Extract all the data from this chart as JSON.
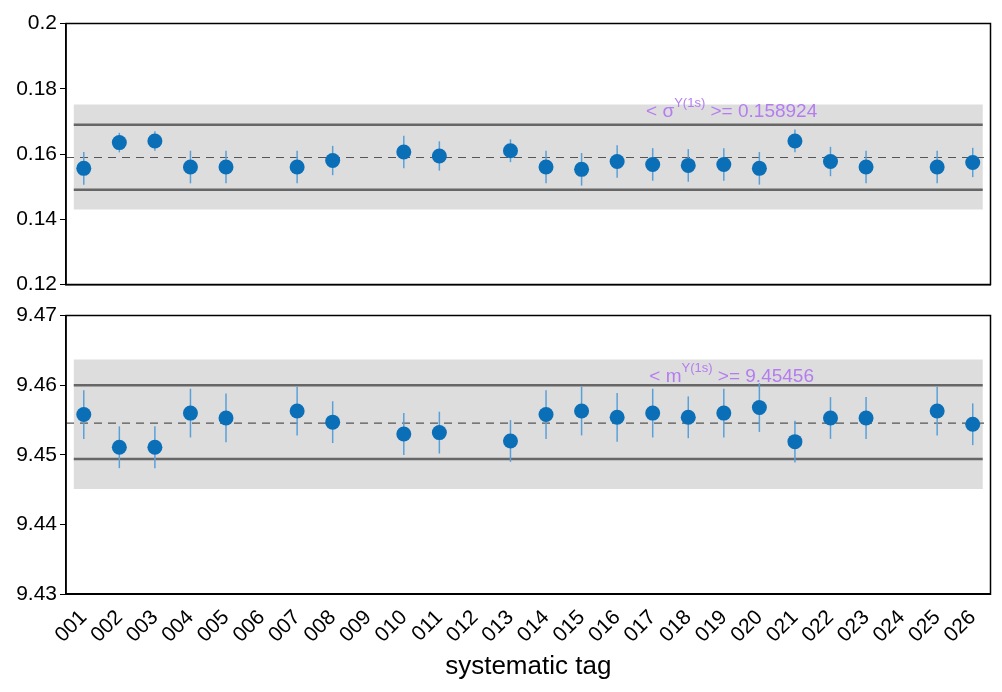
{
  "chart_data": [
    {
      "type": "scatter",
      "categories": [
        "001",
        "002",
        "003",
        "004",
        "005",
        "006",
        "007",
        "008",
        "009",
        "010",
        "011",
        "012",
        "013",
        "014",
        "015",
        "016",
        "017",
        "018",
        "019",
        "020",
        "021",
        "022",
        "023",
        "024",
        "025",
        "026"
      ],
      "series": [
        {
          "color": "#0b6fb8",
          "values": [
            0.1556,
            0.1635,
            0.164,
            0.156,
            0.156,
            null,
            0.156,
            0.158,
            null,
            0.1606,
            0.1594,
            null,
            0.161,
            0.156,
            0.1553,
            0.1577,
            0.1568,
            0.1565,
            0.1568,
            0.1556,
            0.164,
            0.1577,
            0.156,
            null,
            0.156,
            0.1574
          ],
          "errors": [
            0.005,
            0.003,
            0.003,
            0.005,
            0.005,
            null,
            0.005,
            0.0045,
            null,
            0.005,
            0.0045,
            null,
            0.0035,
            0.005,
            0.005,
            0.005,
            0.005,
            0.005,
            0.005,
            0.005,
            0.0035,
            0.0045,
            0.005,
            null,
            0.005,
            0.0045
          ]
        }
      ],
      "ylim": [
        0.12,
        0.2
      ],
      "yticks": [
        0.12,
        0.14,
        0.16,
        0.18,
        0.2
      ],
      "tick_labels": "y",
      "marker": "circle",
      "grid": false,
      "legend": false,
      "ref_lines": [
        {
          "axis": "y",
          "value": 0.158924,
          "color": "#555555",
          "line_style": "dashed"
        },
        {
          "axis": "y",
          "value": 0.169,
          "color": "#666666",
          "line_style": "solid"
        },
        {
          "axis": "y",
          "value": 0.149,
          "color": "#666666",
          "line_style": "solid"
        }
      ],
      "bands": [
        {
          "axis": "y",
          "from": 0.143,
          "to": 0.1752,
          "color": "#dddddd"
        }
      ],
      "annotations": [
        "< σ$^{Υ(1s)}$ >= 0.158924"
      ]
    },
    {
      "type": "scatter",
      "categories": [
        "001",
        "002",
        "003",
        "004",
        "005",
        "006",
        "007",
        "008",
        "009",
        "010",
        "011",
        "012",
        "013",
        "014",
        "015",
        "016",
        "017",
        "018",
        "019",
        "020",
        "021",
        "022",
        "023",
        "024",
        "025",
        "026"
      ],
      "series": [
        {
          "color": "#0b6fb8",
          "values": [
            9.4558,
            9.4511,
            9.4511,
            9.456,
            9.4553,
            null,
            9.4563,
            9.4547,
            null,
            9.453,
            9.4532,
            null,
            9.452,
            9.4558,
            9.4563,
            9.4554,
            9.456,
            9.4554,
            9.456,
            9.4568,
            9.4519,
            9.4553,
            9.4553,
            null,
            9.4563,
            9.4544
          ],
          "errors": [
            0.0035,
            0.003,
            0.003,
            0.0035,
            0.0035,
            null,
            0.0035,
            0.003,
            null,
            0.003,
            0.003,
            null,
            0.003,
            0.0035,
            0.0035,
            0.0035,
            0.0035,
            0.003,
            0.0035,
            0.0035,
            0.003,
            0.003,
            0.003,
            null,
            0.0035,
            0.003
          ]
        }
      ],
      "ylim": [
        9.43,
        9.47
      ],
      "yticks": [
        9.43,
        9.44,
        9.45,
        9.46,
        9.47
      ],
      "xlabel": "systematic tag",
      "marker": "circle",
      "grid": false,
      "legend": false,
      "ref_lines": [
        {
          "axis": "y",
          "value": 9.45456,
          "color": "#555555",
          "line_style": "dashed"
        },
        {
          "axis": "y",
          "value": 9.46,
          "color": "#666666",
          "line_style": "solid"
        },
        {
          "axis": "y",
          "value": 9.4494,
          "color": "#666666",
          "line_style": "solid"
        }
      ],
      "bands": [
        {
          "axis": "y",
          "from": 9.4451,
          "to": 9.4637,
          "color": "#dddddd"
        }
      ],
      "annotations": [
        "< m$^{Υ(1s)}$ >= 9.45456"
      ]
    }
  ]
}
